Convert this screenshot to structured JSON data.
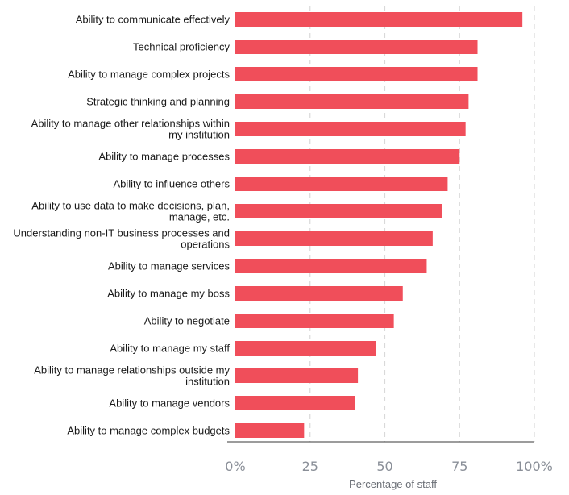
{
  "chart_data": {
    "type": "bar",
    "orientation": "horizontal",
    "categories": [
      [
        "Ability to communicate effectively"
      ],
      [
        "Technical proficiency"
      ],
      [
        "Ability to manage complex projects"
      ],
      [
        "Strategic thinking and planning"
      ],
      [
        "Ability to manage other relationships within",
        "my institution"
      ],
      [
        "Ability to manage processes"
      ],
      [
        "Ability to influence others"
      ],
      [
        "Ability to use data to make decisions, plan,",
        "manage, etc."
      ],
      [
        "Understanding non-IT business processes and",
        "operations"
      ],
      [
        "Ability to manage services"
      ],
      [
        "Ability to manage my boss"
      ],
      [
        "Ability to negotiate"
      ],
      [
        "Ability to manage my staff"
      ],
      [
        "Ability to manage relationships outside my",
        "institution"
      ],
      [
        "Ability to manage vendors"
      ],
      [
        "Ability to manage complex budgets"
      ]
    ],
    "values": [
      96,
      81,
      81,
      78,
      77,
      75,
      71,
      69,
      66,
      64,
      56,
      53,
      47,
      41,
      40,
      23
    ],
    "xlabel": "Percentage of staff",
    "xlim": [
      0,
      100
    ],
    "ticks": [
      "0%",
      "25",
      "50",
      "75",
      "100%"
    ],
    "tick_values": [
      0,
      25,
      50,
      75,
      100
    ],
    "grid": true,
    "bar_color": "#f04e5a",
    "grid_color": "#d9d9d9",
    "tick_color": "#8a8f98"
  }
}
